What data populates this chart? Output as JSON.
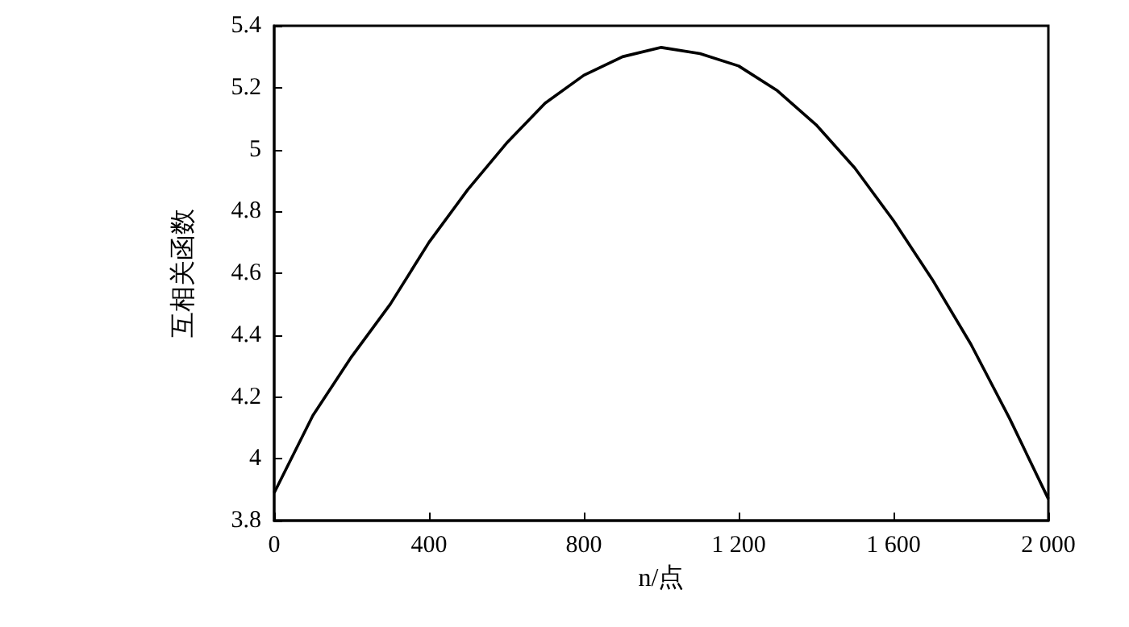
{
  "chart_data": {
    "type": "line",
    "xlabel": "n/点",
    "ylabel": "互相关函数",
    "x": [
      0,
      100,
      200,
      300,
      400,
      500,
      600,
      700,
      800,
      900,
      1000,
      1100,
      1200,
      1300,
      1400,
      1500,
      1600,
      1700,
      1800,
      1900,
      2000
    ],
    "series": [
      {
        "color": "#000000",
        "values": [
          3.89,
          4.14,
          4.33,
          4.5,
          4.7,
          4.87,
          5.02,
          5.15,
          5.24,
          5.3,
          5.33,
          5.31,
          5.27,
          5.19,
          5.08,
          4.94,
          4.77,
          4.58,
          4.37,
          4.13,
          3.87
        ]
      }
    ],
    "xlim": [
      0,
      2000
    ],
    "xticks": [
      0,
      400,
      800,
      {
        "value": 1200,
        "label": "1 200"
      },
      {
        "value": 1600,
        "label": "1 600"
      },
      {
        "value": 2000,
        "label": "2 000"
      }
    ],
    "ylim": [
      3.8,
      5.4
    ],
    "yticks": [
      3.8,
      4,
      4.2,
      4.4,
      4.6,
      4.8,
      5,
      5.2,
      5.4
    ],
    "grid": false,
    "marker": "none",
    "line_style": "solid"
  }
}
